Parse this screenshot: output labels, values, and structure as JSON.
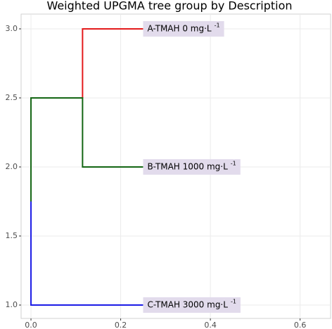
{
  "chart_data": {
    "type": "dendrogram",
    "title": "Weighted UPGMA tree group by Description",
    "xlim": [
      -0.022,
      0.668
    ],
    "ylim": [
      0.903,
      3.107
    ],
    "xticks": [
      {
        "value": 0,
        "label": "0.0"
      },
      0.2,
      0.4,
      0.6
    ],
    "yticks": [
      {
        "value": 1,
        "label": "1.0"
      },
      1.5,
      {
        "value": 2,
        "label": "2.0"
      },
      2.5,
      {
        "value": 3,
        "label": "3.0"
      }
    ],
    "grid": true,
    "segments": [
      {
        "color": "#e41a1c",
        "x": [
          0.115,
          0.115,
          0.25
        ],
        "y": [
          2.5,
          3,
          3
        ]
      },
      {
        "color": "#146614",
        "x": [
          0.25,
          0.115,
          0.115,
          0,
          0
        ],
        "y": [
          2,
          2,
          2.5,
          2.5,
          1.75
        ]
      },
      {
        "color": "#1c1ce6",
        "x": [
          0,
          0,
          0.25
        ],
        "y": [
          1.75,
          1,
          1
        ]
      }
    ],
    "leaves": [
      {
        "label": "A-TMAH 0 mg·L",
        "superscript": "-1",
        "x": 0.25,
        "y": 3
      },
      {
        "label": "B-TMAH 1000 mg·L",
        "superscript": "-1",
        "x": 0.25,
        "y": 2
      },
      {
        "label": "C-TMAH 3000 mg·L",
        "superscript": "-1",
        "x": 0.25,
        "y": 1
      }
    ],
    "label_fill": "#e2dbec"
  }
}
